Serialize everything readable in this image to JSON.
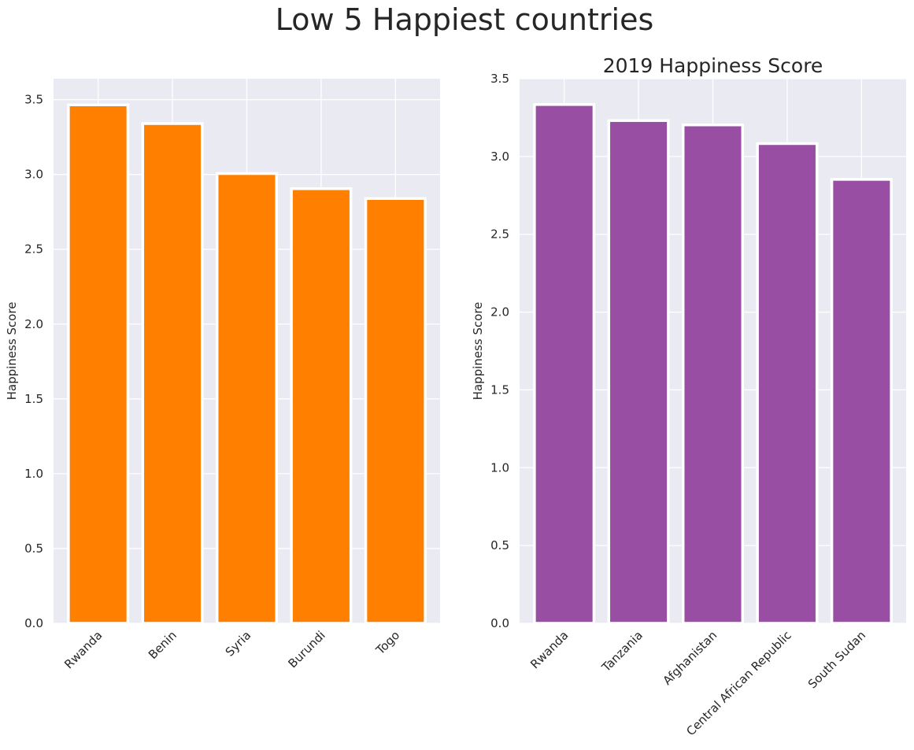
{
  "figure": {
    "suptitle": "Low 5 Happiest countries"
  },
  "chart_data": [
    {
      "type": "bar",
      "title": "",
      "xlabel": "",
      "ylabel": "Happiness Score",
      "categories": [
        "Rwanda",
        "Benin",
        "Syria",
        "Burundi",
        "Togo"
      ],
      "values": [
        3.465,
        3.34,
        3.006,
        2.905,
        2.839
      ],
      "ylim": [
        0,
        3.64
      ],
      "yticks": [
        "0.0",
        "0.5",
        "1.0",
        "1.5",
        "2.0",
        "2.5",
        "3.0",
        "3.5"
      ],
      "color": "#ff7f00",
      "edgecolor": "#ffffff",
      "grid": true
    },
    {
      "type": "bar",
      "title": "2019 Happiness Score",
      "xlabel": "",
      "ylabel": "Happiness Score",
      "categories": [
        "Rwanda",
        "Tanzania",
        "Afghanistan",
        "Central African Republic",
        "South Sudan"
      ],
      "values": [
        3.334,
        3.231,
        3.203,
        3.083,
        2.853
      ],
      "ylim": [
        0,
        3.5
      ],
      "yticks": [
        "0.0",
        "0.5",
        "1.0",
        "1.5",
        "2.0",
        "2.5",
        "3.0",
        "3.5"
      ],
      "color": "#984ea3",
      "edgecolor": "#ffffff",
      "grid": true
    }
  ]
}
